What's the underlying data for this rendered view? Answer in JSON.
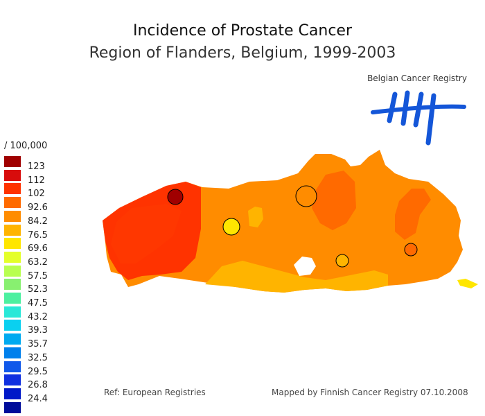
{
  "title": "Incidence of Prostate Cancer",
  "subtitle": "Region of Flanders, Belgium, 1999-2003",
  "logo": {
    "text": "Belgian Cancer Registry",
    "color": "#1456d8"
  },
  "legend": {
    "unit": "/ 100,000",
    "items": [
      {
        "label": "123",
        "color": "#a00000"
      },
      {
        "label": "112",
        "color": "#d80c0c"
      },
      {
        "label": "102",
        "color": "#ff3300"
      },
      {
        "label": "92.6",
        "color": "#ff6a00"
      },
      {
        "label": "84.2",
        "color": "#ff8c00"
      },
      {
        "label": "76.5",
        "color": "#ffb400"
      },
      {
        "label": "69.6",
        "color": "#ffe600"
      },
      {
        "label": "63.2",
        "color": "#e4ff2a"
      },
      {
        "label": "57.5",
        "color": "#b8ff50"
      },
      {
        "label": "52.3",
        "color": "#88f070"
      },
      {
        "label": "47.5",
        "color": "#4cf0a0"
      },
      {
        "label": "43.2",
        "color": "#28e8d8"
      },
      {
        "label": "39.3",
        "color": "#0ad0f0"
      },
      {
        "label": "35.7",
        "color": "#00aaf0"
      },
      {
        "label": "32.5",
        "color": "#0080ec"
      },
      {
        "label": "29.5",
        "color": "#1058ea"
      },
      {
        "label": "26.8",
        "color": "#1030e0"
      },
      {
        "label": "24.4",
        "color": "#0018c8"
      },
      {
        "label": "",
        "color": "#000c9a"
      }
    ]
  },
  "references": {
    "left": "Ref: European Registries",
    "right": "Mapped by Finnish Cancer Registry 07.10.2008"
  }
}
